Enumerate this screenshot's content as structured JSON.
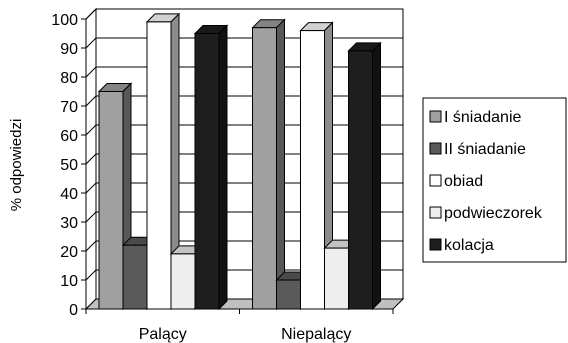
{
  "chart_data": {
    "type": "bar",
    "title": "",
    "xlabel": "",
    "ylabel": "% odpowiedzi",
    "ylim": [
      0,
      100
    ],
    "yticks": [
      0,
      10,
      20,
      30,
      40,
      50,
      60,
      70,
      80,
      90,
      100
    ],
    "categories": [
      "Palący",
      "Niepalący"
    ],
    "grid": true,
    "legend_position": "right",
    "series": [
      {
        "name": "I śniadanie",
        "values": [
          75,
          97
        ],
        "color": "#a0a0a0"
      },
      {
        "name": "II śniadanie",
        "values": [
          22,
          10
        ],
        "color": "#5a5a5a"
      },
      {
        "name": "obiad",
        "values": [
          99,
          96
        ],
        "color": "#ffffff"
      },
      {
        "name": "podwieczorek",
        "values": [
          19,
          21
        ],
        "color": "#eeeeee"
      },
      {
        "name": "kolacja",
        "values": [
          95,
          89
        ],
        "color": "#1e1e1e"
      }
    ]
  }
}
